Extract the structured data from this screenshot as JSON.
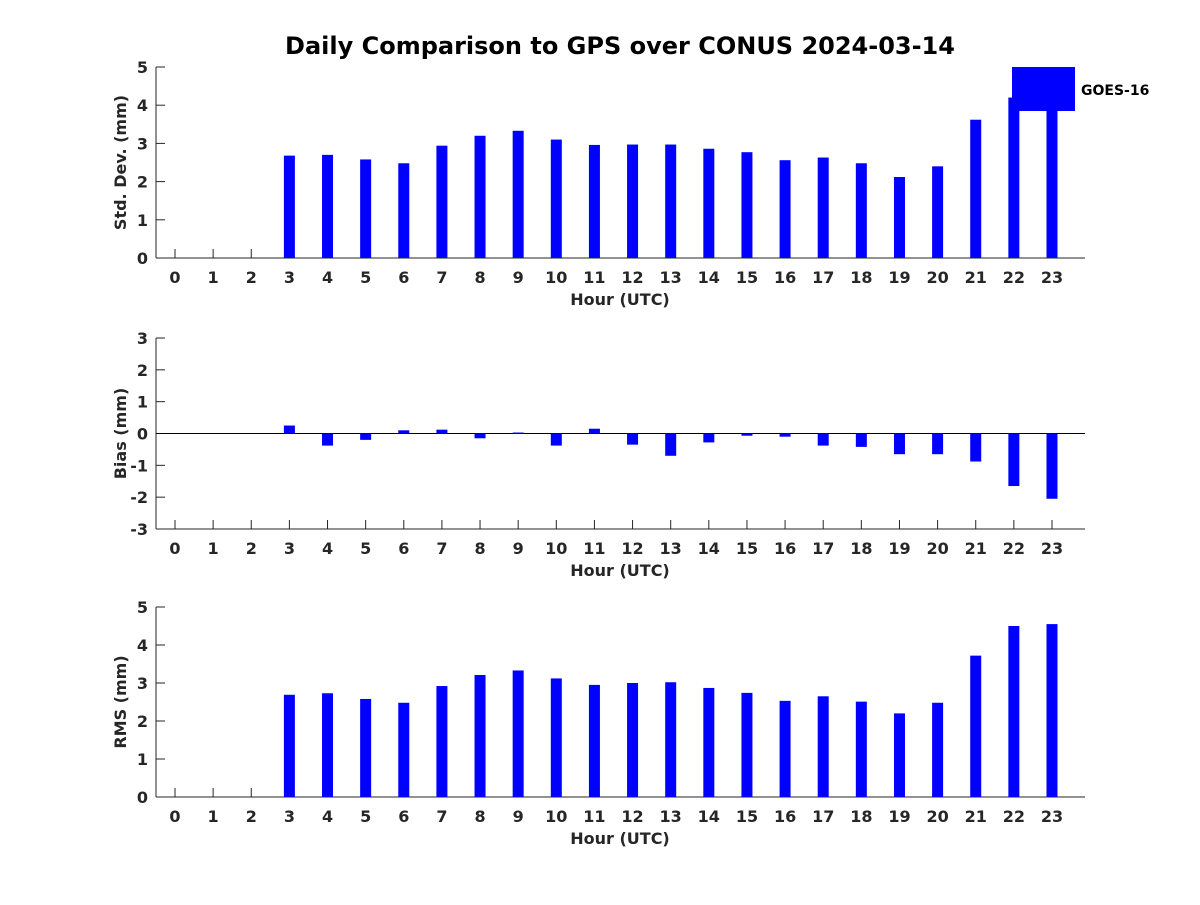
{
  "title": "Daily Comparison to GPS over CONUS 2024-03-14",
  "legend": {
    "label": "GOES-16",
    "color": "#0000ff",
    "placement": "top-right"
  },
  "chart_data": [
    {
      "type": "bar",
      "ylabel": "Std. Dev. (mm)",
      "xlabel": "Hour (UTC)",
      "categories": [
        "0",
        "1",
        "2",
        "3",
        "4",
        "5",
        "6",
        "7",
        "8",
        "9",
        "10",
        "11",
        "12",
        "13",
        "14",
        "15",
        "16",
        "17",
        "18",
        "19",
        "20",
        "21",
        "22",
        "23"
      ],
      "values": [
        null,
        null,
        null,
        2.68,
        2.7,
        2.58,
        2.48,
        2.94,
        3.2,
        3.33,
        3.1,
        2.96,
        2.97,
        2.97,
        2.86,
        2.77,
        2.56,
        2.63,
        2.48,
        2.12,
        2.4,
        3.62,
        4.2,
        4.05
      ],
      "ylim": [
        0,
        5
      ],
      "yticks": [
        "0",
        "1",
        "2",
        "3",
        "4",
        "5"
      ],
      "series_name": "GOES-16",
      "color": "#0000ff"
    },
    {
      "type": "bar",
      "ylabel": "Bias (mm)",
      "xlabel": "Hour (UTC)",
      "categories": [
        "0",
        "1",
        "2",
        "3",
        "4",
        "5",
        "6",
        "7",
        "8",
        "9",
        "10",
        "11",
        "12",
        "13",
        "14",
        "15",
        "16",
        "17",
        "18",
        "19",
        "20",
        "21",
        "22",
        "23"
      ],
      "values": [
        null,
        null,
        null,
        0.25,
        -0.38,
        -0.2,
        0.1,
        0.12,
        -0.15,
        0.03,
        -0.38,
        0.15,
        -0.35,
        -0.7,
        -0.28,
        -0.07,
        -0.1,
        -0.38,
        -0.42,
        -0.65,
        -0.65,
        -0.88,
        -1.65,
        -2.05
      ],
      "ylim": [
        -3,
        3
      ],
      "yticks": [
        "-3",
        "-2",
        "-1",
        "0",
        "1",
        "2",
        "3"
      ],
      "zero_line": true,
      "series_name": "GOES-16",
      "color": "#0000ff"
    },
    {
      "type": "bar",
      "ylabel": "RMS (mm)",
      "xlabel": "Hour (UTC)",
      "categories": [
        "0",
        "1",
        "2",
        "3",
        "4",
        "5",
        "6",
        "7",
        "8",
        "9",
        "10",
        "11",
        "12",
        "13",
        "14",
        "15",
        "16",
        "17",
        "18",
        "19",
        "20",
        "21",
        "22",
        "23"
      ],
      "values": [
        null,
        null,
        null,
        2.69,
        2.73,
        2.58,
        2.48,
        2.92,
        3.21,
        3.33,
        3.12,
        2.95,
        3.0,
        3.02,
        2.87,
        2.74,
        2.53,
        2.65,
        2.51,
        2.2,
        2.48,
        3.72,
        4.5,
        4.55
      ],
      "ylim": [
        0,
        5
      ],
      "yticks": [
        "0",
        "1",
        "2",
        "3",
        "4",
        "5"
      ],
      "series_name": "GOES-16",
      "color": "#0000ff"
    }
  ]
}
